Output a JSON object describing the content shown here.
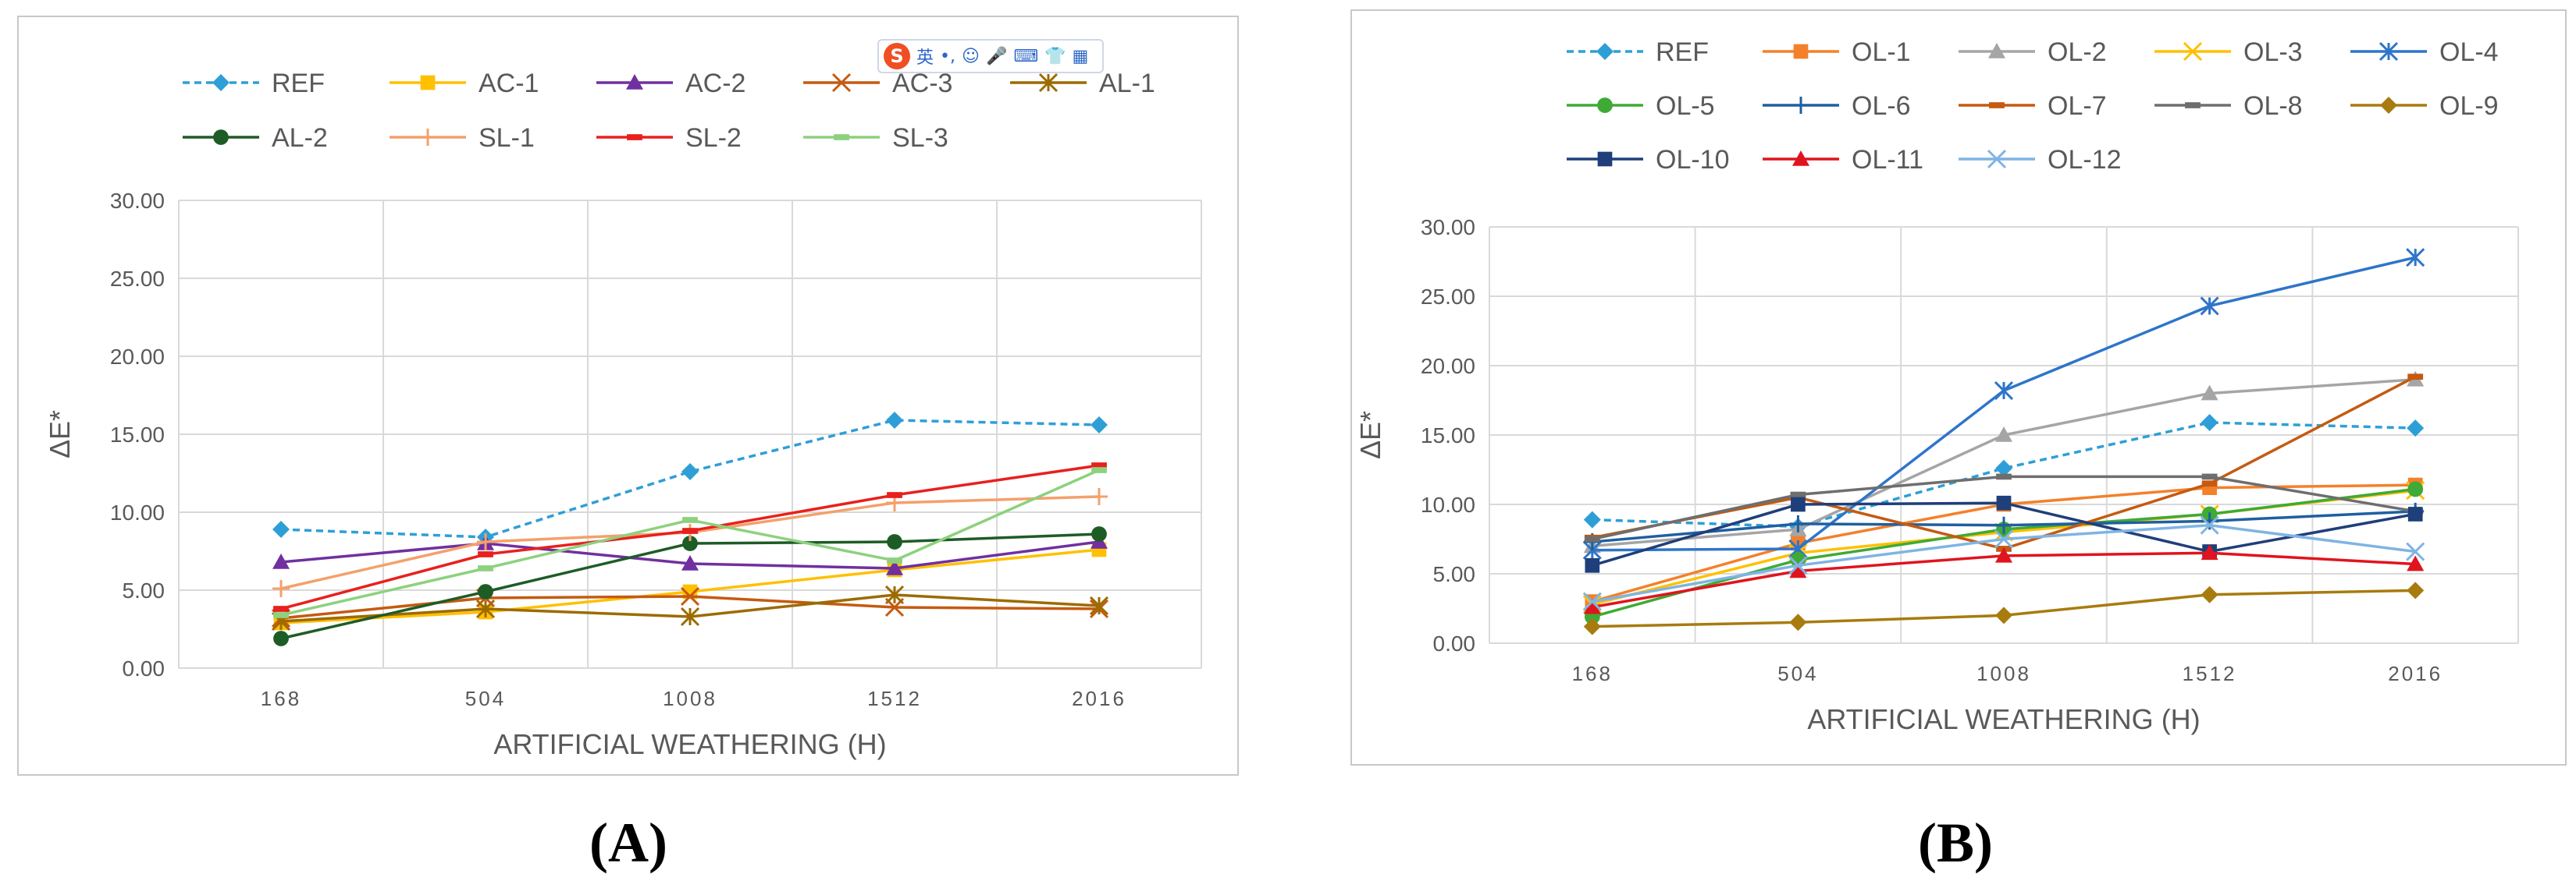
{
  "panels": [
    {
      "id": "A",
      "label": "(A)",
      "chart_data": {
        "type": "line",
        "title": "",
        "xlabel": "ARTIFICIAL WEATHERING (H)",
        "ylabel": "ΔE*",
        "categories": [
          "168",
          "504",
          "1008",
          "1512",
          "2016"
        ],
        "ylim": [
          0,
          30
        ],
        "yticks": [
          "0.00",
          "5.00",
          "10.00",
          "15.00",
          "20.00",
          "25.00",
          "30.00"
        ],
        "grid": true,
        "legend_position": "top",
        "series": [
          {
            "name": "REF",
            "values": [
              8.9,
              8.4,
              12.6,
              15.9,
              15.6
            ],
            "color": "#2e9fd6",
            "marker": "diamond",
            "dashed": true
          },
          {
            "name": "AC-1",
            "values": [
              2.9,
              3.6,
              4.9,
              6.3,
              7.6
            ],
            "color": "#ffc000",
            "marker": "square"
          },
          {
            "name": "AC-2",
            "values": [
              6.8,
              8.0,
              6.7,
              6.4,
              8.1
            ],
            "color": "#7030a0",
            "marker": "triangle"
          },
          {
            "name": "AC-3",
            "values": [
              3.2,
              4.5,
              4.6,
              3.9,
              3.8
            ],
            "color": "#c55a11",
            "marker": "x"
          },
          {
            "name": "AL-1",
            "values": [
              3.0,
              3.8,
              3.3,
              4.7,
              4.0
            ],
            "color": "#9c6b00",
            "marker": "star"
          },
          {
            "name": "AL-2",
            "values": [
              1.9,
              4.9,
              8.0,
              8.1,
              8.6
            ],
            "color": "#1e5c26",
            "marker": "circle"
          },
          {
            "name": "SL-1",
            "values": [
              5.1,
              8.1,
              8.7,
              10.6,
              11.0
            ],
            "color": "#f4a06b",
            "marker": "plus"
          },
          {
            "name": "SL-2",
            "values": [
              3.8,
              7.3,
              8.8,
              11.1,
              13.0
            ],
            "color": "#e8201e",
            "marker": "dash"
          },
          {
            "name": "SL-3",
            "values": [
              3.4,
              6.4,
              9.5,
              6.9,
              12.7
            ],
            "color": "#8dd17e",
            "marker": "dash"
          }
        ]
      }
    },
    {
      "id": "B",
      "label": "(B)",
      "chart_data": {
        "type": "line",
        "title": "",
        "xlabel": "ARTIFICIAL WEATHERING (H)",
        "ylabel": "ΔE*",
        "categories": [
          "168",
          "504",
          "1008",
          "1512",
          "2016"
        ],
        "ylim": [
          0,
          30
        ],
        "yticks": [
          "0.00",
          "5.00",
          "10.00",
          "15.00",
          "20.00",
          "25.00",
          "30.00"
        ],
        "grid": true,
        "legend_position": "top",
        "series": [
          {
            "name": "REF",
            "values": [
              8.9,
              8.4,
              12.6,
              15.9,
              15.5
            ],
            "color": "#2e9fd6",
            "marker": "diamond",
            "dashed": true
          },
          {
            "name": "OL-1",
            "values": [
              3.0,
              7.2,
              10.0,
              11.2,
              11.4
            ],
            "color": "#f4802b",
            "marker": "square"
          },
          {
            "name": "OL-2",
            "values": [
              7.0,
              8.2,
              15.0,
              18.0,
              19.0
            ],
            "color": "#a5a5a5",
            "marker": "triangle"
          },
          {
            "name": "OL-3",
            "values": [
              2.8,
              6.5,
              8.0,
              9.3,
              11.0
            ],
            "color": "#ffc000",
            "marker": "x"
          },
          {
            "name": "OL-4",
            "values": [
              6.7,
              6.8,
              18.2,
              24.3,
              27.8
            ],
            "color": "#2e75c9",
            "marker": "star"
          },
          {
            "name": "OL-5",
            "values": [
              1.9,
              6.0,
              8.2,
              9.3,
              11.1
            ],
            "color": "#3faa35",
            "marker": "circle"
          },
          {
            "name": "OL-6",
            "values": [
              7.3,
              8.6,
              8.5,
              8.8,
              9.5
            ],
            "color": "#1f5fa0",
            "marker": "plus"
          },
          {
            "name": "OL-7",
            "values": [
              7.6,
              10.5,
              6.8,
              11.5,
              19.2
            ],
            "color": "#c55a11",
            "marker": "dash"
          },
          {
            "name": "OL-8",
            "values": [
              7.5,
              10.7,
              12.0,
              12.0,
              9.5
            ],
            "color": "#6e6e6e",
            "marker": "dash"
          },
          {
            "name": "OL-9",
            "values": [
              1.2,
              1.5,
              2.0,
              3.5,
              3.8
            ],
            "color": "#a87b0f",
            "marker": "diamond"
          },
          {
            "name": "OL-10",
            "values": [
              5.6,
              10.0,
              10.1,
              6.6,
              9.3
            ],
            "color": "#1f3f7a",
            "marker": "square"
          },
          {
            "name": "OL-11",
            "values": [
              2.6,
              5.2,
              6.3,
              6.5,
              5.7
            ],
            "color": "#e0141e",
            "marker": "triangle"
          },
          {
            "name": "OL-12",
            "values": [
              3.0,
              5.6,
              7.5,
              8.5,
              6.6
            ],
            "color": "#7fb4e3",
            "marker": "x"
          }
        ]
      }
    }
  ],
  "ime_toolbar": {
    "logo": "S",
    "items": [
      "英",
      "•,",
      "☺",
      "🎤",
      "⌨",
      "👕",
      "▦"
    ]
  }
}
